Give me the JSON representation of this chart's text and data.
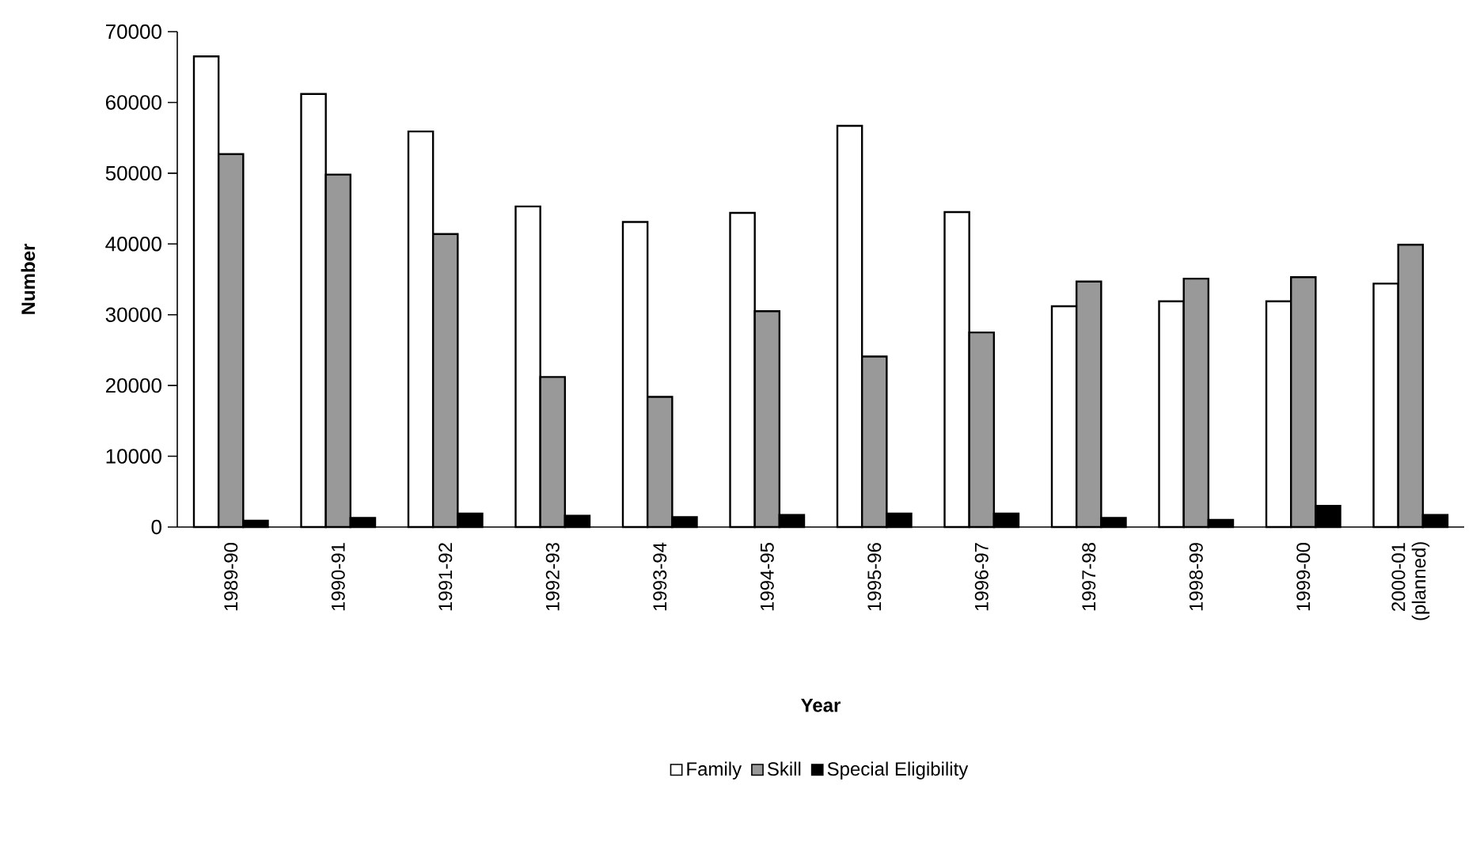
{
  "chart_data": {
    "type": "bar",
    "xlabel": "Year",
    "ylabel": "Number",
    "categories": [
      "1989-90",
      "1990-91",
      "1991-92",
      "1992-93",
      "1993-94",
      "1994-95",
      "1995-96",
      "1996-97",
      "1997-98",
      "1998-99",
      "1999-00",
      "2000-01 (planned)"
    ],
    "series": [
      {
        "name": "Family",
        "color": "#ffffff",
        "values": [
          66500,
          61200,
          55900,
          45300,
          43100,
          44400,
          56700,
          44500,
          31200,
          31900,
          31900,
          34400
        ]
      },
      {
        "name": "Skill",
        "color": "#999999",
        "values": [
          52700,
          49800,
          41400,
          21200,
          18400,
          30500,
          24100,
          27500,
          34700,
          35100,
          35300,
          39900
        ]
      },
      {
        "name": "Special Eligibility",
        "color": "#000000",
        "values": [
          900,
          1300,
          1900,
          1600,
          1400,
          1700,
          1900,
          1900,
          1300,
          1000,
          3000,
          1700
        ]
      }
    ],
    "ylim": [
      0,
      70000
    ],
    "yticks": [
      0,
      10000,
      20000,
      30000,
      40000,
      50000,
      60000,
      70000
    ],
    "grid": false,
    "legend": "bottom"
  }
}
